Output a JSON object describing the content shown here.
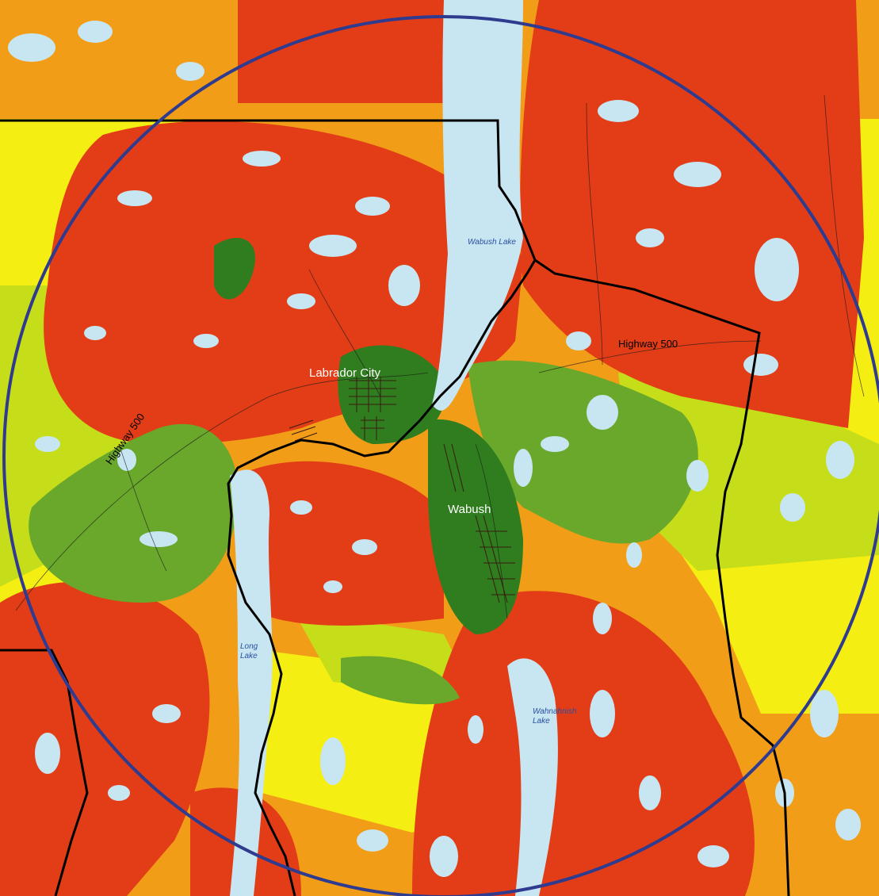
{
  "map": {
    "labels": {
      "wabush_lake": "Wabush Lake",
      "labrador_city": "Labrador City",
      "wabush": "Wabush",
      "highway_500_east": "Highway 500",
      "highway_500_west": "Highway 500",
      "long_lake": "Long\nLake",
      "wahnahnish_lake": "Wahnahnish\nLake"
    },
    "colors": {
      "water": "#c7e6f1",
      "strong_coverage": "#2f7d1f",
      "good_coverage": "#6aa82b",
      "fair_coverage": "#c6dd1a",
      "weak_coverage": "#f4ee12",
      "poor_coverage": "#f29d18",
      "no_coverage": "#e23d17",
      "radius_circle": "#2f3b8f",
      "boundary_line": "#000000",
      "lake_label": "#2a4fa0",
      "city_label": "#ffffff"
    }
  }
}
